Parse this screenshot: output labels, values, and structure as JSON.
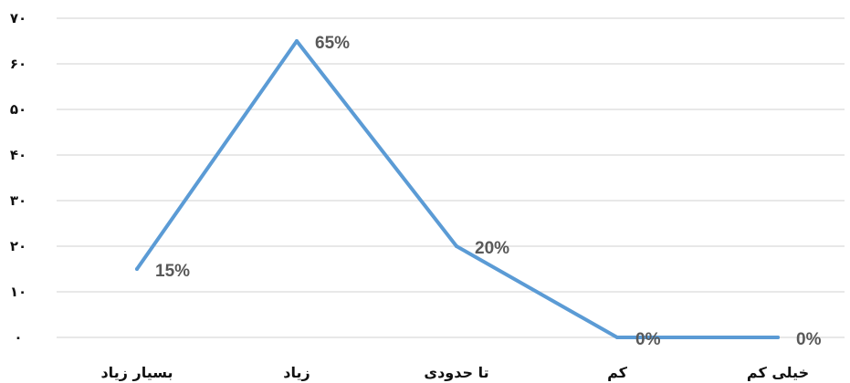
{
  "chart_data": {
    "type": "line",
    "title": "",
    "xlabel": "",
    "ylabel": "",
    "categories": [
      "بسیار زیاد",
      "زیاد",
      "تا حدودی",
      "کم",
      "خیلی کم"
    ],
    "series": [
      {
        "values": [
          15,
          65,
          20,
          0,
          0
        ],
        "data_labels": [
          "15%",
          "65%",
          "20%",
          "0%",
          "0%"
        ],
        "color": "#5b9bd5"
      }
    ],
    "ylim": [
      0,
      70
    ],
    "yticks": [
      0,
      10,
      20,
      30,
      40,
      50,
      60,
      70
    ],
    "ytick_labels": [
      "۰",
      "۱۰",
      "۲۰",
      "۳۰",
      "۴۰",
      "۵۰",
      "۶۰",
      "۷۰"
    ],
    "grid": true,
    "legend": "none"
  }
}
